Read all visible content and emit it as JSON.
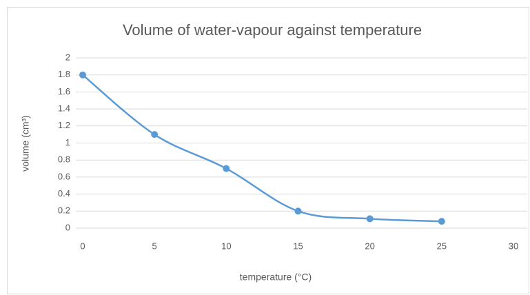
{
  "chart_data": {
    "type": "scatter",
    "title": "Volume of water-vapour against temperature",
    "x_label": "temperature (°C)",
    "y_label": "volume (cm³)",
    "series": [
      {
        "name": "volume",
        "color": "#5b9bd5",
        "x": [
          0,
          5,
          10,
          15,
          20,
          25
        ],
        "values": [
          1.8,
          1.1,
          0.7,
          0.2,
          0.11,
          0.08
        ]
      }
    ],
    "smooth": true,
    "xlim": [
      0,
      30
    ],
    "xticks": [
      0,
      5,
      10,
      15,
      20,
      25,
      30
    ],
    "ylim": [
      0,
      2
    ],
    "yticks": [
      0,
      0.2,
      0.4,
      0.6,
      0.8,
      1,
      1.2,
      1.4,
      1.6,
      1.8,
      2
    ],
    "grid": true
  }
}
